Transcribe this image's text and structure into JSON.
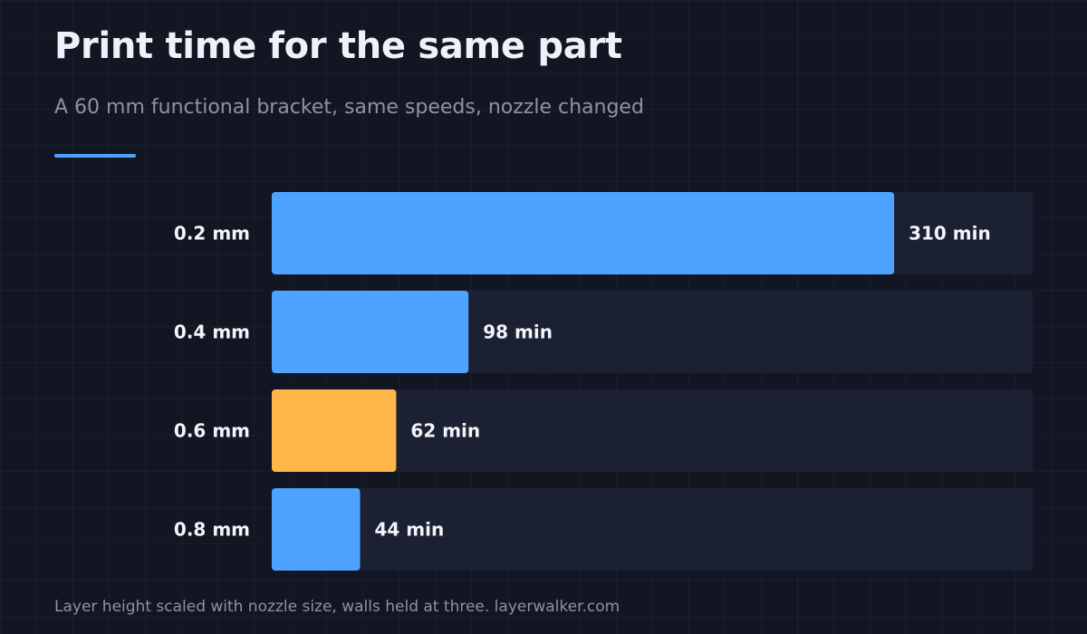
{
  "header": {
    "title": "Print time for the same part",
    "subtitle": "A 60 mm functional bracket, same speeds, nozzle changed"
  },
  "footer": {
    "note": "Layer height scaled with nozzle size, walls held at three. layerwalker.com"
  },
  "colors": {
    "background": "#121622",
    "track": "#1b2133",
    "bar": "#4da3ff",
    "highlight": "#ffb547",
    "label": "#f1f4f9",
    "accent_rule": "#4da3ff"
  },
  "chart_data": {
    "type": "bar",
    "orientation": "horizontal",
    "categories": [
      "0.2 mm",
      "0.4 mm",
      "0.6 mm",
      "0.8 mm"
    ],
    "values": [
      310,
      98,
      62,
      44
    ],
    "value_labels": [
      "310 min",
      "98 min",
      "62 min",
      "44 min"
    ],
    "highlight_index": 2,
    "unit": "min",
    "xlim": [
      0,
      379
    ],
    "grid": false,
    "legend": "none"
  }
}
